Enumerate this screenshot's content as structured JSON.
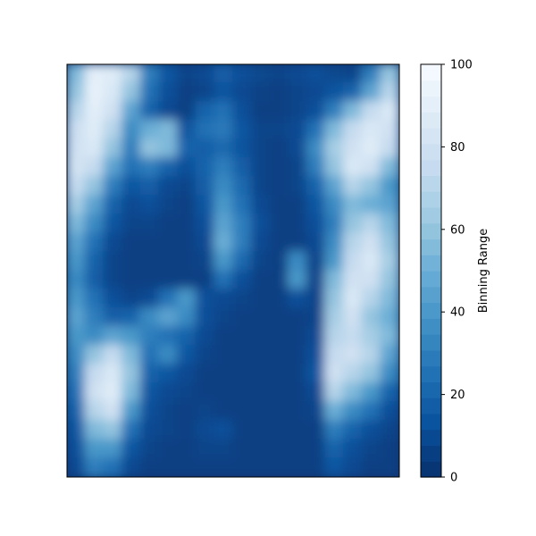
{
  "chart_data": {
    "type": "heatmap",
    "title": "",
    "xlabel": "",
    "ylabel": "",
    "colormap": "Blues_r",
    "colors": {
      "low": "#08306b",
      "high": "#f7fbff",
      "frame": "#000000",
      "background": "#ffffff"
    },
    "axes_ticks_visible": false,
    "colorbar": {
      "label": "Binning Range",
      "range": [
        0,
        100
      ],
      "ticks": [
        "0",
        "20",
        "40",
        "60",
        "80",
        "100"
      ],
      "tick_values": [
        0,
        20,
        40,
        60,
        80,
        100
      ],
      "levels": 26
    },
    "grid_size": [
      22,
      18
    ],
    "z": [
      [
        55,
        90,
        88,
        70,
        30,
        15,
        8,
        10,
        18,
        12,
        9,
        8,
        10,
        12,
        9,
        8,
        30,
        60
      ],
      [
        60,
        92,
        85,
        60,
        25,
        12,
        6,
        8,
        14,
        10,
        7,
        6,
        8,
        10,
        14,
        20,
        45,
        70
      ],
      [
        70,
        90,
        80,
        45,
        20,
        10,
        6,
        20,
        25,
        12,
        6,
        6,
        8,
        12,
        30,
        55,
        75,
        85
      ],
      [
        78,
        88,
        70,
        35,
        50,
        55,
        14,
        25,
        28,
        15,
        8,
        8,
        10,
        25,
        55,
        75,
        85,
        80
      ],
      [
        80,
        85,
        60,
        30,
        60,
        55,
        20,
        18,
        22,
        14,
        8,
        6,
        10,
        35,
        65,
        80,
        88,
        75
      ],
      [
        82,
        75,
        45,
        25,
        30,
        20,
        12,
        20,
        30,
        18,
        8,
        6,
        8,
        30,
        60,
        85,
        80,
        55
      ],
      [
        75,
        60,
        30,
        15,
        18,
        10,
        8,
        18,
        35,
        22,
        8,
        6,
        8,
        20,
        45,
        70,
        60,
        40
      ],
      [
        65,
        45,
        20,
        10,
        12,
        8,
        6,
        15,
        40,
        25,
        10,
        6,
        6,
        15,
        35,
        55,
        50,
        45
      ],
      [
        55,
        35,
        15,
        8,
        8,
        6,
        6,
        12,
        45,
        30,
        12,
        6,
        6,
        12,
        30,
        60,
        70,
        55
      ],
      [
        45,
        25,
        10,
        6,
        6,
        6,
        6,
        10,
        50,
        30,
        10,
        6,
        6,
        10,
        35,
        70,
        80,
        60
      ],
      [
        40,
        20,
        8,
        6,
        6,
        6,
        6,
        8,
        40,
        22,
        8,
        6,
        35,
        8,
        40,
        75,
        85,
        65
      ],
      [
        35,
        18,
        8,
        6,
        6,
        6,
        6,
        6,
        25,
        12,
        6,
        6,
        40,
        8,
        55,
        80,
        80,
        60
      ],
      [
        40,
        25,
        12,
        8,
        10,
        25,
        40,
        12,
        10,
        8,
        6,
        6,
        12,
        8,
        60,
        85,
        70,
        55
      ],
      [
        45,
        30,
        18,
        20,
        35,
        45,
        35,
        12,
        8,
        6,
        6,
        6,
        6,
        8,
        65,
        80,
        60,
        50
      ],
      [
        40,
        35,
        45,
        40,
        30,
        25,
        20,
        10,
        6,
        6,
        6,
        6,
        6,
        10,
        70,
        75,
        65,
        55
      ],
      [
        35,
        60,
        75,
        55,
        25,
        35,
        15,
        8,
        6,
        6,
        6,
        6,
        6,
        12,
        75,
        80,
        70,
        45
      ],
      [
        30,
        75,
        85,
        60,
        20,
        15,
        10,
        6,
        6,
        6,
        6,
        6,
        6,
        15,
        80,
        70,
        60,
        35
      ],
      [
        25,
        80,
        88,
        55,
        15,
        10,
        8,
        6,
        6,
        6,
        6,
        6,
        6,
        10,
        70,
        55,
        40,
        20
      ],
      [
        20,
        70,
        80,
        40,
        12,
        8,
        6,
        8,
        6,
        6,
        6,
        6,
        6,
        8,
        50,
        35,
        25,
        12
      ],
      [
        15,
        55,
        60,
        25,
        10,
        8,
        6,
        10,
        12,
        6,
        6,
        6,
        6,
        6,
        30,
        20,
        12,
        8
      ],
      [
        12,
        40,
        40,
        15,
        8,
        6,
        6,
        8,
        8,
        6,
        6,
        6,
        6,
        6,
        20,
        12,
        8,
        6
      ],
      [
        10,
        30,
        25,
        10,
        6,
        6,
        6,
        6,
        6,
        6,
        6,
        6,
        6,
        6,
        15,
        10,
        6,
        6
      ]
    ]
  }
}
